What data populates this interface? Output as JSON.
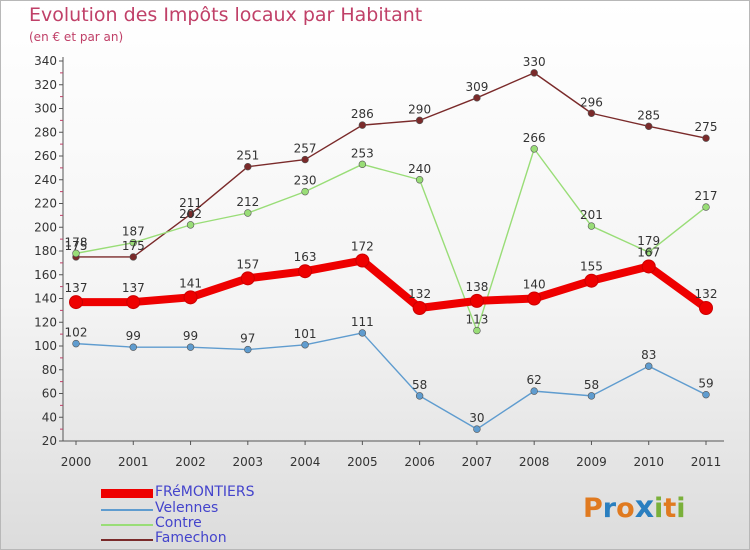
{
  "header": {
    "title": "Evolution des Impôts locaux par Habitant",
    "subtitle": "(en € et par an)"
  },
  "logo": {
    "letters": [
      "P",
      "r",
      "o",
      "x",
      "i",
      "t",
      "i"
    ],
    "colors": [
      "#e07a20",
      "#2a7fc0",
      "#e07a20",
      "#2a7fc0",
      "#7ab03a",
      "#e07a20",
      "#7ab03a"
    ]
  },
  "chart_data": {
    "type": "line",
    "x": [
      "2000",
      "2001",
      "2002",
      "2003",
      "2004",
      "2005",
      "2006",
      "2007",
      "2008",
      "2009",
      "2010",
      "2011"
    ],
    "ylim": [
      20,
      340
    ],
    "yticks": [
      20,
      40,
      60,
      80,
      100,
      120,
      140,
      160,
      180,
      200,
      220,
      240,
      260,
      280,
      300,
      320,
      340
    ],
    "grid": false,
    "legend_position": "bottom-left",
    "series": [
      {
        "name": "FRéMONTIERS",
        "color": "#ee0000",
        "values": [
          137,
          137,
          141,
          157,
          163,
          172,
          132,
          138,
          140,
          155,
          167,
          132
        ]
      },
      {
        "name": "Velennes",
        "color": "#5f9ccf",
        "values": [
          102,
          99,
          99,
          97,
          101,
          111,
          58,
          30,
          62,
          58,
          83,
          59
        ]
      },
      {
        "name": "Contre",
        "color": "#99dd77",
        "values": [
          178,
          187,
          202,
          212,
          230,
          253,
          240,
          113,
          266,
          201,
          179,
          217
        ]
      },
      {
        "name": "Famechon",
        "color": "#7a2a2a",
        "values": [
          175,
          175,
          211,
          251,
          257,
          286,
          290,
          309,
          330,
          296,
          285,
          275
        ]
      }
    ]
  }
}
